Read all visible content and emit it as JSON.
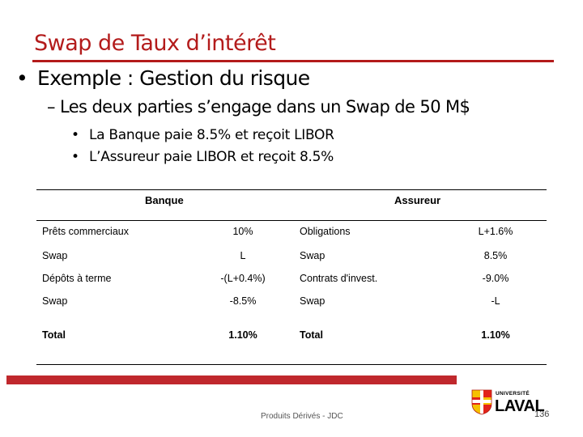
{
  "slide": {
    "title": "Swap de Taux d’intérêt",
    "bullet1": "Exemple : Gestion du risque",
    "bullet2": "– Les deux parties s’engage dans un Swap de 50 M$",
    "bullet3a": "La Banque paie 8.5% et reçoit LIBOR",
    "bullet3b": "L’Assureur paie LIBOR et reçoit 8.5%"
  },
  "table": {
    "header_left": "Banque",
    "header_right": "Assureur",
    "rows": [
      {
        "a": "Prêts commerciaux",
        "b": "10%",
        "c": "Obligations",
        "d": "L+1.6%"
      },
      {
        "a": "Swap",
        "b": "L",
        "c": "Swap",
        "d": "8.5%"
      },
      {
        "a": "Dépôts à terme",
        "b": "-(L+0.4%)",
        "c": "Contrats d'invest.",
        "d": "-9.0%"
      },
      {
        "a": "Swap",
        "b": "-8.5%",
        "c": "Swap",
        "d": "-L"
      },
      {
        "a": "Total",
        "b": "1.10%",
        "c": "Total",
        "d": "1.10%"
      }
    ]
  },
  "footer": {
    "text": "Produits Dérivés - JDC",
    "page_number": "136",
    "logo_small": "UNIVERSITÉ",
    "logo_big": "LAVAL",
    "bar_color": "#c0282d"
  }
}
